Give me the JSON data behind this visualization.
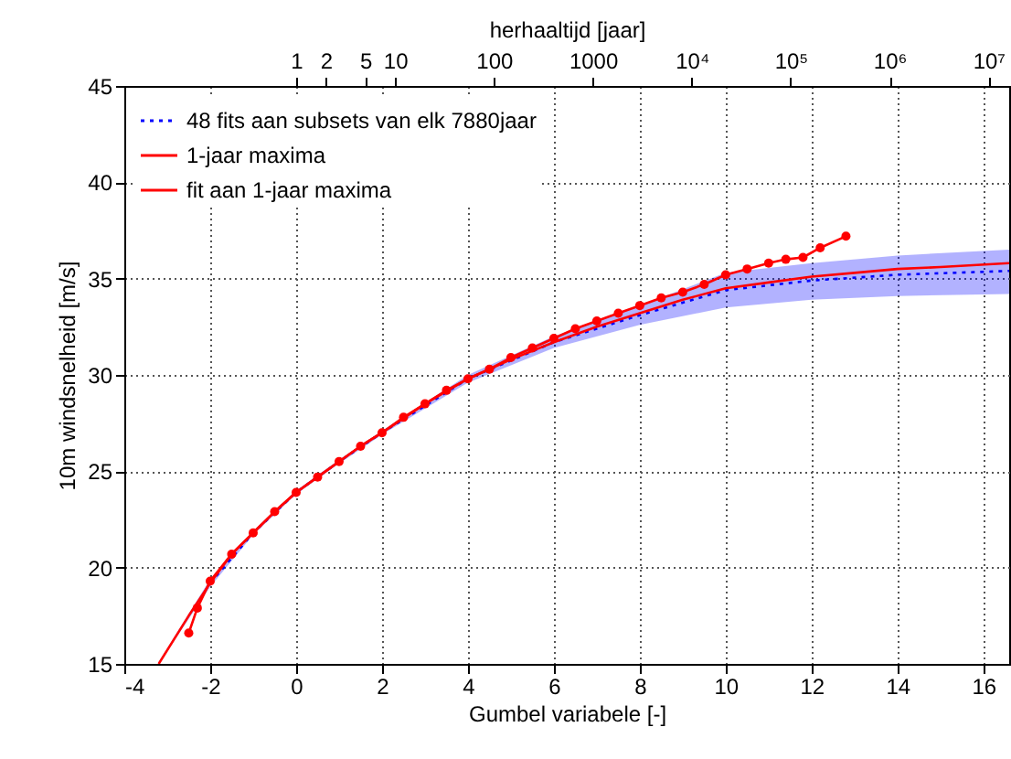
{
  "chart_data": {
    "type": "line",
    "xlabel": "Gumbel variabele [-]",
    "ylabel": "10m windsnelheid [m/s]",
    "x2label": "herhaaltijd [jaar]",
    "xlim": [
      -4,
      16.6
    ],
    "xticks": [
      -4,
      -2,
      0,
      2,
      4,
      6,
      8,
      10,
      12,
      14,
      16
    ],
    "ylim": [
      15,
      45
    ],
    "yticks": [
      15,
      20,
      25,
      30,
      35,
      40,
      45
    ],
    "x2lim": [
      0.0183,
      16200000
    ],
    "x2ticks": [
      1,
      2,
      5,
      10,
      100,
      1000,
      {
        "value": 10000,
        "label": "10⁴"
      },
      {
        "value": 100000,
        "label": "10⁵"
      },
      {
        "value": 1000000,
        "label": "10⁶"
      },
      {
        "value": 10000000,
        "label": "10⁷"
      }
    ],
    "log": "x2",
    "grid": true,
    "legend": "top left",
    "series": [
      {
        "name": "48 fits aan subsets van elk 7880jaar",
        "color": "#0000ff",
        "line_style": "dotted",
        "marker": "none",
        "x": [
          -3.2,
          -2,
          -1,
          0,
          1,
          2,
          4,
          6,
          8,
          10,
          12,
          14,
          16.6
        ],
        "values": [
          null,
          19.2,
          21.8,
          23.9,
          25.5,
          27.0,
          29.8,
          31.7,
          33.1,
          34.4,
          34.9,
          35.2,
          35.4
        ],
        "lower": [
          15,
          19.0,
          21.7,
          23.8,
          25.4,
          26.9,
          29.6,
          31.4,
          32.6,
          33.5,
          33.9,
          34.1,
          34.2
        ],
        "upper": [
          15.1,
          19.4,
          21.9,
          24.0,
          25.6,
          27.1,
          30.0,
          32.0,
          33.6,
          35.3,
          35.8,
          36.2,
          36.5
        ]
      },
      {
        "name": "1-jaar maxima",
        "color": "#ff0000",
        "line_style": "solid",
        "marker": "circle",
        "x": [
          -2.5,
          -2.3,
          -2,
          -1.5,
          -1,
          -0.5,
          0,
          0.5,
          1,
          1.5,
          2,
          2.5,
          3,
          3.5,
          4,
          4.5,
          5,
          5.5,
          6,
          6.5,
          7,
          7.5,
          8,
          8.5,
          9,
          9.5,
          10,
          10.5,
          11,
          11.4,
          11.8,
          12.2,
          12.8
        ],
        "values": [
          16.6,
          17.9,
          19.3,
          20.7,
          21.8,
          22.9,
          23.9,
          24.7,
          25.5,
          26.3,
          27.0,
          27.8,
          28.5,
          29.2,
          29.8,
          30.3,
          30.9,
          31.4,
          31.9,
          32.4,
          32.8,
          33.2,
          33.6,
          34.0,
          34.3,
          34.7,
          35.2,
          35.5,
          35.8,
          36.0,
          36.1,
          36.6,
          37.2
        ]
      },
      {
        "name": "fit aan 1-jaar maxima",
        "color": "#ff0000",
        "line_style": "solid",
        "marker": "none",
        "x": [
          -3.2,
          -2.5,
          -2,
          -1.5,
          -1,
          -0.5,
          0,
          0.5,
          1,
          1.5,
          2,
          3,
          4,
          5,
          6,
          7,
          8,
          9,
          10,
          11,
          12,
          13,
          14,
          15,
          16.6
        ],
        "values": [
          15,
          17.5,
          19.2,
          20.7,
          21.8,
          22.9,
          23.9,
          24.7,
          25.5,
          26.3,
          27.0,
          28.5,
          29.8,
          30.8,
          31.7,
          32.5,
          33.2,
          33.9,
          34.5,
          34.8,
          35.1,
          35.3,
          35.5,
          35.6,
          35.8
        ]
      }
    ]
  }
}
